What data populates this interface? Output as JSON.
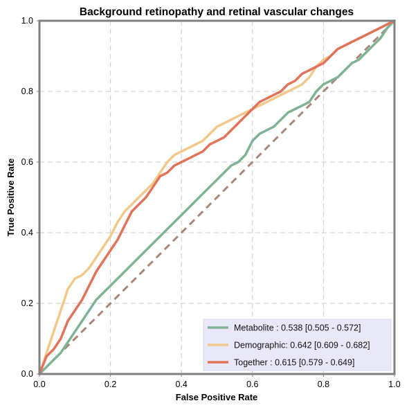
{
  "chart_data": {
    "type": "line",
    "title": "Background retinopathy and retinal vascular changes",
    "xlabel": "False Positive Rate",
    "ylabel": "True Positive Rate",
    "xlim": [
      0,
      1
    ],
    "ylim": [
      0,
      1
    ],
    "xticks": [
      "0.0",
      "0.2",
      "0.4",
      "0.6",
      "0.8",
      "1.0"
    ],
    "yticks": [
      "0.0",
      "0.2",
      "0.4",
      "0.6",
      "0.8",
      "1.0"
    ],
    "grid": true,
    "legend_placement": "lower-right",
    "chance_line": {
      "x": [
        0,
        1
      ],
      "y": [
        0,
        1
      ],
      "color": "#a9857a"
    },
    "series": [
      {
        "name": "Metabolite",
        "legend_label": "Metabolite      : 0.538 [0.505 - 0.572]",
        "color": "#7fb396",
        "x": [
          0,
          0.02,
          0.04,
          0.06,
          0.08,
          0.1,
          0.12,
          0.14,
          0.16,
          0.18,
          0.2,
          0.22,
          0.24,
          0.26,
          0.28,
          0.3,
          0.32,
          0.34,
          0.36,
          0.38,
          0.4,
          0.42,
          0.44,
          0.46,
          0.48,
          0.5,
          0.52,
          0.54,
          0.56,
          0.58,
          0.6,
          0.62,
          0.64,
          0.66,
          0.68,
          0.7,
          0.72,
          0.74,
          0.76,
          0.78,
          0.8,
          0.82,
          0.84,
          0.86,
          0.88,
          0.9,
          0.92,
          0.94,
          0.96,
          0.98,
          1.0
        ],
        "y": [
          0,
          0.02,
          0.04,
          0.06,
          0.09,
          0.12,
          0.15,
          0.18,
          0.21,
          0.23,
          0.25,
          0.27,
          0.29,
          0.31,
          0.33,
          0.35,
          0.37,
          0.39,
          0.41,
          0.43,
          0.45,
          0.47,
          0.49,
          0.51,
          0.53,
          0.55,
          0.57,
          0.59,
          0.6,
          0.62,
          0.66,
          0.68,
          0.69,
          0.7,
          0.72,
          0.74,
          0.75,
          0.76,
          0.77,
          0.8,
          0.82,
          0.83,
          0.84,
          0.86,
          0.88,
          0.89,
          0.91,
          0.93,
          0.95,
          0.98,
          1.0
        ]
      },
      {
        "name": "Demographic",
        "legend_label": "Demographic: 0.642 [0.609 - 0.682]",
        "color": "#f3c98b",
        "x": [
          0,
          0.02,
          0.04,
          0.06,
          0.08,
          0.1,
          0.12,
          0.14,
          0.16,
          0.18,
          0.2,
          0.22,
          0.24,
          0.26,
          0.28,
          0.3,
          0.32,
          0.34,
          0.36,
          0.38,
          0.4,
          0.42,
          0.44,
          0.46,
          0.48,
          0.5,
          0.52,
          0.54,
          0.56,
          0.58,
          0.6,
          0.62,
          0.64,
          0.66,
          0.68,
          0.7,
          0.72,
          0.74,
          0.76,
          0.78,
          0.8,
          0.82,
          0.84,
          0.86,
          0.88,
          0.9,
          0.92,
          0.94,
          0.96,
          0.98,
          1.0
        ],
        "y": [
          0,
          0.06,
          0.12,
          0.18,
          0.24,
          0.27,
          0.28,
          0.3,
          0.33,
          0.36,
          0.39,
          0.43,
          0.46,
          0.48,
          0.5,
          0.52,
          0.54,
          0.57,
          0.6,
          0.62,
          0.63,
          0.64,
          0.65,
          0.66,
          0.68,
          0.7,
          0.71,
          0.72,
          0.73,
          0.74,
          0.75,
          0.76,
          0.77,
          0.78,
          0.79,
          0.8,
          0.81,
          0.82,
          0.84,
          0.87,
          0.89,
          0.9,
          0.92,
          0.93,
          0.94,
          0.95,
          0.96,
          0.97,
          0.98,
          0.99,
          1.0
        ]
      },
      {
        "name": "Together",
        "legend_label": "Together       : 0.615 [0.579 - 0.649]",
        "color": "#e0735a",
        "x": [
          0,
          0.02,
          0.04,
          0.06,
          0.08,
          0.1,
          0.12,
          0.14,
          0.16,
          0.18,
          0.2,
          0.22,
          0.24,
          0.26,
          0.28,
          0.3,
          0.32,
          0.34,
          0.36,
          0.38,
          0.4,
          0.42,
          0.44,
          0.46,
          0.48,
          0.5,
          0.52,
          0.54,
          0.56,
          0.58,
          0.6,
          0.62,
          0.64,
          0.66,
          0.68,
          0.7,
          0.72,
          0.74,
          0.76,
          0.78,
          0.8,
          0.82,
          0.84,
          0.86,
          0.88,
          0.9,
          0.92,
          0.94,
          0.96,
          0.98,
          1.0
        ],
        "y": [
          0,
          0.05,
          0.07,
          0.1,
          0.15,
          0.18,
          0.21,
          0.25,
          0.29,
          0.32,
          0.35,
          0.38,
          0.42,
          0.46,
          0.48,
          0.5,
          0.53,
          0.56,
          0.57,
          0.59,
          0.6,
          0.61,
          0.62,
          0.63,
          0.65,
          0.66,
          0.67,
          0.69,
          0.71,
          0.73,
          0.75,
          0.77,
          0.78,
          0.79,
          0.8,
          0.82,
          0.83,
          0.85,
          0.86,
          0.87,
          0.88,
          0.9,
          0.92,
          0.93,
          0.94,
          0.95,
          0.96,
          0.97,
          0.98,
          0.99,
          1.0
        ]
      }
    ]
  }
}
